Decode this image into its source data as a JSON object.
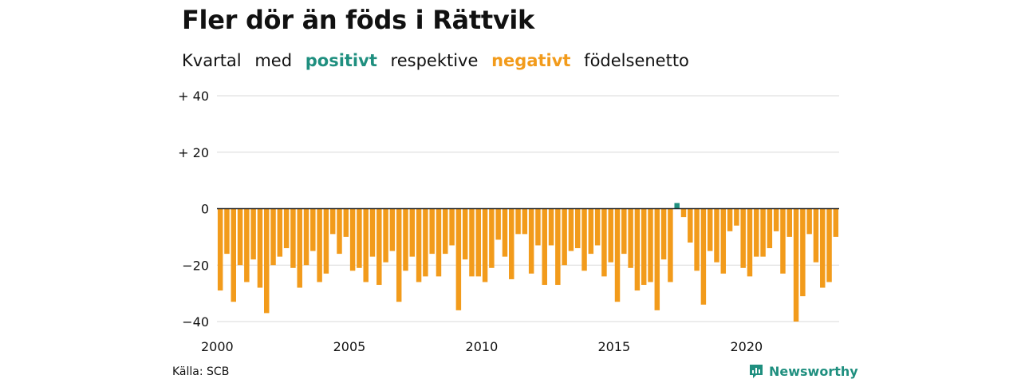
{
  "header": {
    "title": "Fler dör än föds i Rättvik",
    "subtitle_parts": [
      "Kvartal",
      "med",
      "positivt",
      "respektive",
      "negativt",
      "födelsenetto"
    ]
  },
  "colors": {
    "positive": "#1f8f7f",
    "negative": "#f29b1b",
    "grid": "#d9d9d9",
    "zero_line": "#222222"
  },
  "footer": {
    "source": "Källa: SCB",
    "brand": "Newsworthy"
  },
  "chart_data": {
    "type": "bar",
    "title": "Fler dör än föds i Rättvik",
    "subtitle": "Kvartal med positivt respektive negativt födelsenetto",
    "ylim": [
      -40,
      40
    ],
    "y_ticks": [
      40,
      20,
      0,
      -20,
      -40
    ],
    "y_tick_labels": [
      "+ 40",
      "+ 20",
      "0",
      "−20",
      "−40"
    ],
    "x_tick_years": [
      2000,
      2005,
      2010,
      2015,
      2020
    ],
    "x_tick_labels": [
      "2000",
      "2005",
      "2010",
      "2015",
      "2020"
    ],
    "grid": true,
    "start_year": 2000,
    "values": [
      -29,
      -16,
      -33,
      -20,
      -26,
      -18,
      -28,
      -37,
      -20,
      -17,
      -14,
      -21,
      -28,
      -20,
      -15,
      -26,
      -23,
      -9,
      -16,
      -10,
      -22,
      -21,
      -26,
      -17,
      -27,
      -19,
      -15,
      -33,
      -22,
      -17,
      -26,
      -24,
      -16,
      -24,
      -16,
      -13,
      -36,
      -18,
      -24,
      -24,
      -26,
      -21,
      -11,
      -17,
      -25,
      -9,
      -9,
      -23,
      -13,
      -27,
      -13,
      -27,
      -20,
      -15,
      -14,
      -22,
      -16,
      -13,
      -24,
      -19,
      -33,
      -16,
      -21,
      -29,
      -27,
      -26,
      -36,
      -18,
      -26,
      2,
      -3,
      -12,
      -22,
      -34,
      -15,
      -19,
      -23,
      -8,
      -6,
      -21,
      -24,
      -17,
      -17,
      -14,
      -8,
      -23,
      -10,
      -40,
      -31,
      -9,
      -19,
      -28,
      -26,
      -10
    ]
  }
}
